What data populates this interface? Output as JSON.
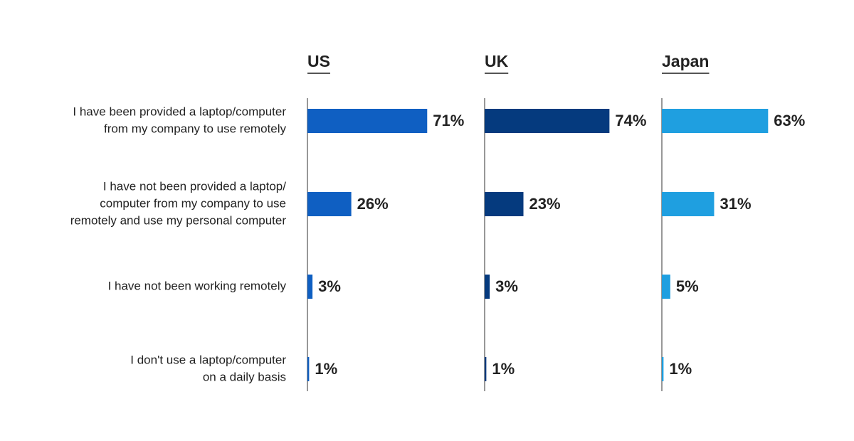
{
  "chart_data": {
    "type": "bar",
    "orientation": "horizontal",
    "categories": [
      [
        "I have been provided a laptop/computer",
        "from my company to use remotely"
      ],
      [
        "I have not been provided a laptop/",
        "computer from my company to use",
        "remotely and use my personal computer"
      ],
      [
        "I have not been working remotely"
      ],
      [
        "I don't use a laptop/computer",
        "on a daily basis"
      ]
    ],
    "series": [
      {
        "name": "US",
        "color": "#0f5fc2",
        "values": [
          71,
          26,
          3,
          1
        ],
        "value_labels": [
          "71%",
          "26%",
          "3%",
          "1%"
        ]
      },
      {
        "name": "UK",
        "color": "#053a7e",
        "values": [
          74,
          23,
          3,
          1
        ],
        "value_labels": [
          "74%",
          "23%",
          "3%",
          "1%"
        ]
      },
      {
        "name": "Japan",
        "color": "#1f9fe0",
        "values": [
          63,
          31,
          5,
          1
        ],
        "value_labels": [
          "63%",
          "31%",
          "5%",
          "1%"
        ]
      }
    ],
    "xlim": [
      0,
      100
    ]
  }
}
